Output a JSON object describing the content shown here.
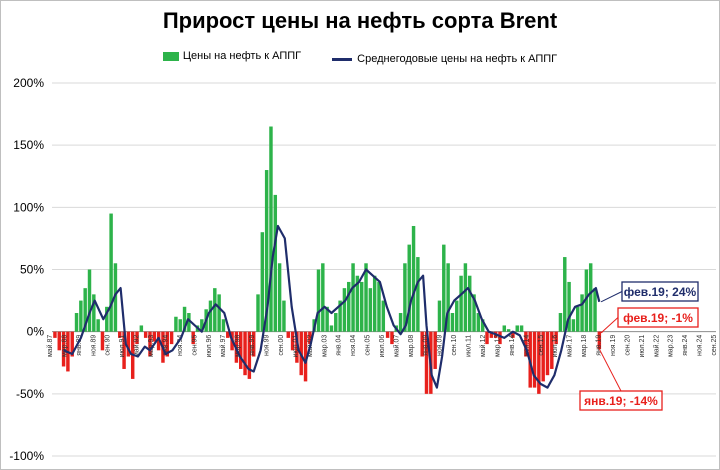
{
  "title": "Прирост цены на нефть сорта Brent",
  "legend": {
    "bars_label": "Цены на нефть к АППГ",
    "line_label": "Среднегодовые цены на нефть к АППГ"
  },
  "colors": {
    "positive_bar": "#2db34a",
    "negative_bar": "#e8201c",
    "line": "#1f2d6b",
    "grid": "#d9d9d9",
    "callout_blue": "#1f2d6b",
    "callout_red": "#e8201c"
  },
  "chart_data": {
    "type": "bar",
    "title": "Прирост цены на нефть сорта Brent",
    "ylim": [
      -100,
      200
    ],
    "y_ticks": [
      -100,
      -50,
      0,
      50,
      100,
      150,
      200
    ],
    "y_tick_labels": [
      "-100%",
      "-50%",
      "0%",
      "50%",
      "100%",
      "150%",
      "200%"
    ],
    "x_range": [
      1987.33,
      2025.75
    ],
    "x_tick_labels": [
      "май.87",
      "мар.88",
      "янв.89",
      "ноя.89",
      "сен.90",
      "июл.91",
      "май.92",
      "мар.93",
      "янв.94",
      "ноя.94",
      "сен.95",
      "июл.96",
      "май.97",
      "мар.98",
      "янв.99",
      "ноя.99",
      "сен.00",
      "июл.01",
      "май.02",
      "мар.03",
      "янв.04",
      "ноя.04",
      "сен.05",
      "июл.06",
      "май.07",
      "мар.08",
      "янв.09",
      "ноя.09",
      "сен.10",
      "июл.11",
      "май.12",
      "мар.13",
      "янв.14",
      "ноя.14",
      "сен.15",
      "июл.16",
      "май.17",
      "мар.18",
      "янв.19",
      "ноя.19",
      "сен.20",
      "июл.21",
      "май.22",
      "мар.23",
      "янв.24",
      "ноя.24",
      "сен.25"
    ],
    "grid": true,
    "legend_position": "top",
    "series": [
      {
        "name": "Цены на нефть к АППГ",
        "type": "bar",
        "points": [
          [
            1987.5,
            -5
          ],
          [
            1987.75,
            -15
          ],
          [
            1988.0,
            -28
          ],
          [
            1988.25,
            -32
          ],
          [
            1988.5,
            -20
          ],
          [
            1988.75,
            15
          ],
          [
            1989.0,
            25
          ],
          [
            1989.25,
            35
          ],
          [
            1989.5,
            50
          ],
          [
            1989.75,
            30
          ],
          [
            1990.0,
            10
          ],
          [
            1990.25,
            -15
          ],
          [
            1990.5,
            20
          ],
          [
            1990.75,
            95
          ],
          [
            1991.0,
            55
          ],
          [
            1991.25,
            -5
          ],
          [
            1991.5,
            -30
          ],
          [
            1991.75,
            -20
          ],
          [
            1992.0,
            -38
          ],
          [
            1992.25,
            -10
          ],
          [
            1992.5,
            5
          ],
          [
            1992.75,
            -5
          ],
          [
            1993.0,
            -20
          ],
          [
            1993.25,
            -8
          ],
          [
            1993.5,
            -15
          ],
          [
            1993.75,
            -25
          ],
          [
            1994.0,
            -20
          ],
          [
            1994.25,
            -10
          ],
          [
            1994.5,
            12
          ],
          [
            1994.75,
            10
          ],
          [
            1995.0,
            20
          ],
          [
            1995.25,
            15
          ],
          [
            1995.5,
            -10
          ],
          [
            1995.75,
            5
          ],
          [
            1996.0,
            10
          ],
          [
            1996.25,
            18
          ],
          [
            1996.5,
            25
          ],
          [
            1996.75,
            35
          ],
          [
            1997.0,
            30
          ],
          [
            1997.25,
            10
          ],
          [
            1997.5,
            -5
          ],
          [
            1997.75,
            -15
          ],
          [
            1998.0,
            -25
          ],
          [
            1998.25,
            -30
          ],
          [
            1998.5,
            -35
          ],
          [
            1998.75,
            -38
          ],
          [
            1999.0,
            -20
          ],
          [
            1999.25,
            30
          ],
          [
            1999.5,
            80
          ],
          [
            1999.75,
            130
          ],
          [
            2000.0,
            165
          ],
          [
            2000.25,
            110
          ],
          [
            2000.5,
            55
          ],
          [
            2000.75,
            25
          ],
          [
            2001.0,
            -5
          ],
          [
            2001.25,
            -15
          ],
          [
            2001.5,
            -25
          ],
          [
            2001.75,
            -35
          ],
          [
            2002.0,
            -40
          ],
          [
            2002.25,
            -10
          ],
          [
            2002.5,
            10
          ],
          [
            2002.75,
            50
          ],
          [
            2003.0,
            55
          ],
          [
            2003.25,
            20
          ],
          [
            2003.5,
            5
          ],
          [
            2003.75,
            15
          ],
          [
            2004.0,
            25
          ],
          [
            2004.25,
            35
          ],
          [
            2004.5,
            40
          ],
          [
            2004.75,
            55
          ],
          [
            2005.0,
            45
          ],
          [
            2005.25,
            40
          ],
          [
            2005.5,
            55
          ],
          [
            2005.75,
            35
          ],
          [
            2006.0,
            45
          ],
          [
            2006.25,
            40
          ],
          [
            2006.5,
            25
          ],
          [
            2006.75,
            -5
          ],
          [
            2007.0,
            -10
          ],
          [
            2007.25,
            5
          ],
          [
            2007.5,
            15
          ],
          [
            2007.75,
            55
          ],
          [
            2008.0,
            70
          ],
          [
            2008.25,
            85
          ],
          [
            2008.5,
            60
          ],
          [
            2008.75,
            -20
          ],
          [
            2009.0,
            -50
          ],
          [
            2009.25,
            -50
          ],
          [
            2009.5,
            -30
          ],
          [
            2009.75,
            25
          ],
          [
            2010.0,
            70
          ],
          [
            2010.25,
            55
          ],
          [
            2010.5,
            15
          ],
          [
            2010.75,
            25
          ],
          [
            2011.0,
            45
          ],
          [
            2011.25,
            55
          ],
          [
            2011.5,
            45
          ],
          [
            2011.75,
            30
          ],
          [
            2012.0,
            15
          ],
          [
            2012.25,
            10
          ],
          [
            2012.5,
            -10
          ],
          [
            2012.75,
            -5
          ],
          [
            2013.0,
            -5
          ],
          [
            2013.25,
            -10
          ],
          [
            2013.5,
            5
          ],
          [
            2013.75,
            2
          ],
          [
            2014.0,
            -5
          ],
          [
            2014.25,
            5
          ],
          [
            2014.5,
            5
          ],
          [
            2014.75,
            -20
          ],
          [
            2015.0,
            -45
          ],
          [
            2015.25,
            -45
          ],
          [
            2015.5,
            -50
          ],
          [
            2015.75,
            -40
          ],
          [
            2016.0,
            -35
          ],
          [
            2016.25,
            -30
          ],
          [
            2016.5,
            -10
          ],
          [
            2016.75,
            15
          ],
          [
            2017.0,
            60
          ],
          [
            2017.25,
            40
          ],
          [
            2017.5,
            10
          ],
          [
            2017.75,
            20
          ],
          [
            2018.0,
            30
          ],
          [
            2018.25,
            50
          ],
          [
            2018.5,
            55
          ],
          [
            2018.75,
            35
          ],
          [
            2019.0,
            -14
          ],
          [
            2019.08,
            -1
          ]
        ]
      },
      {
        "name": "Среднегодовые цены на нефть к АППГ",
        "type": "line",
        "points": [
          [
            1988.0,
            -15
          ],
          [
            1988.5,
            -18
          ],
          [
            1989.0,
            -5
          ],
          [
            1989.5,
            15
          ],
          [
            1989.8,
            25
          ],
          [
            1990.3,
            10
          ],
          [
            1990.7,
            20
          ],
          [
            1991.0,
            30
          ],
          [
            1991.3,
            35
          ],
          [
            1991.6,
            -10
          ],
          [
            1991.9,
            -18
          ],
          [
            1992.3,
            -20
          ],
          [
            1992.7,
            -12
          ],
          [
            1993.0,
            -15
          ],
          [
            1993.5,
            -5
          ],
          [
            1993.9,
            -18
          ],
          [
            1994.3,
            -15
          ],
          [
            1994.8,
            -5
          ],
          [
            1995.2,
            10
          ],
          [
            1995.6,
            5
          ],
          [
            1996.0,
            0
          ],
          [
            1996.4,
            15
          ],
          [
            1996.8,
            22
          ],
          [
            1997.3,
            15
          ],
          [
            1997.7,
            -5
          ],
          [
            1998.2,
            -20
          ],
          [
            1998.7,
            -30
          ],
          [
            1999.0,
            -32
          ],
          [
            1999.4,
            -15
          ],
          [
            1999.8,
            20
          ],
          [
            2000.1,
            60
          ],
          [
            2000.4,
            85
          ],
          [
            2000.8,
            75
          ],
          [
            2001.2,
            20
          ],
          [
            2001.6,
            -15
          ],
          [
            2002.0,
            -25
          ],
          [
            2002.3,
            -10
          ],
          [
            2002.7,
            15
          ],
          [
            2003.1,
            20
          ],
          [
            2003.5,
            15
          ],
          [
            2003.9,
            20
          ],
          [
            2004.3,
            25
          ],
          [
            2004.7,
            35
          ],
          [
            2005.1,
            40
          ],
          [
            2005.5,
            50
          ],
          [
            2005.9,
            45
          ],
          [
            2006.3,
            40
          ],
          [
            2006.7,
            20
          ],
          [
            2007.1,
            5
          ],
          [
            2007.5,
            -2
          ],
          [
            2007.8,
            5
          ],
          [
            2008.1,
            25
          ],
          [
            2008.5,
            40
          ],
          [
            2008.8,
            45
          ],
          [
            2009.0,
            5
          ],
          [
            2009.3,
            -35
          ],
          [
            2009.6,
            -45
          ],
          [
            2009.9,
            -20
          ],
          [
            2010.2,
            15
          ],
          [
            2010.6,
            25
          ],
          [
            2011.0,
            30
          ],
          [
            2011.4,
            35
          ],
          [
            2011.8,
            25
          ],
          [
            2012.2,
            10
          ],
          [
            2012.6,
            0
          ],
          [
            2013.0,
            -2
          ],
          [
            2013.5,
            -5
          ],
          [
            2014.0,
            0
          ],
          [
            2014.4,
            -3
          ],
          [
            2014.8,
            -15
          ],
          [
            2015.2,
            -35
          ],
          [
            2015.6,
            -42
          ],
          [
            2016.0,
            -45
          ],
          [
            2016.4,
            -35
          ],
          [
            2016.8,
            -15
          ],
          [
            2017.2,
            10
          ],
          [
            2017.6,
            20
          ],
          [
            2018.0,
            22
          ],
          [
            2018.4,
            30
          ],
          [
            2018.8,
            35
          ],
          [
            2019.0,
            24
          ]
        ]
      }
    ],
    "annotations": [
      {
        "text": "фев.19; 24%",
        "x": 2019.1,
        "y": 24,
        "color": "#1f2d6b"
      },
      {
        "text": "фев.19; -1%",
        "x": 2019.1,
        "y": -1,
        "color": "#e8201c"
      },
      {
        "text": "янв.19; -14%",
        "x": 2019.0,
        "y": -14,
        "color": "#e8201c"
      }
    ]
  }
}
